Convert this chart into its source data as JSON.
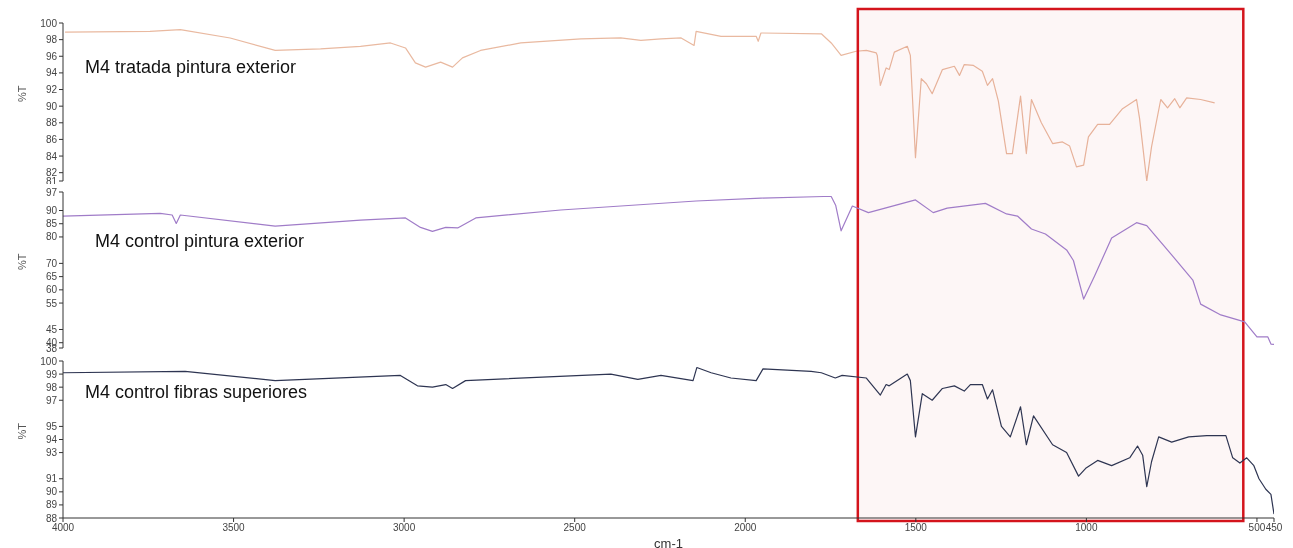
{
  "chart_data": [
    {
      "type": "line",
      "ylabel": "%T",
      "xlim": [
        4000,
        450
      ],
      "xticks": [
        4000,
        3500,
        3000,
        2500,
        2000,
        1500,
        1000,
        500,
        450
      ],
      "ylim": [
        81,
        100
      ],
      "yticks": [
        100,
        98,
        96,
        94,
        92,
        90,
        88,
        86,
        84,
        82,
        81
      ],
      "tick_labels": "y",
      "marker": "none",
      "line_style": "solid",
      "bands": [
        {
          "axis": "x",
          "from": 1670,
          "to": 540,
          "color": "#d4141c"
        }
      ],
      "series": [
        {
          "name": "M4 tratada pintura exterior",
          "color": "#e9b9a0",
          "x": [
            3994,
            3745,
            3656,
            3510,
            3378,
            3245,
            3128,
            3040,
            2996,
            2967,
            2937,
            2893,
            2858,
            2829,
            2776,
            2658,
            2482,
            2365,
            2306,
            2247,
            2188,
            2150,
            2144,
            2071,
            1968,
            1962,
            1954,
            1777,
            1748,
            1719,
            1675,
            1645,
            1616,
            1613,
            1604,
            1587,
            1578,
            1563,
            1525,
            1516,
            1501,
            1484,
            1469,
            1452,
            1422,
            1387,
            1372,
            1358,
            1331,
            1305,
            1290,
            1275,
            1258,
            1234,
            1217,
            1193,
            1176,
            1161,
            1132,
            1099,
            1070,
            1049,
            1029,
            1008,
            994,
            967,
            932,
            894,
            853,
            844,
            823,
            809,
            782,
            762,
            741,
            726,
            706,
            665,
            624
          ],
          "values": [
            98.9,
            99.0,
            99.2,
            98.2,
            96.7,
            96.9,
            97.2,
            97.6,
            97.0,
            95.2,
            94.7,
            95.3,
            94.7,
            95.8,
            96.7,
            97.6,
            98.1,
            98.2,
            97.9,
            98.1,
            98.2,
            97.3,
            99.0,
            98.4,
            98.4,
            97.8,
            98.8,
            98.7,
            97.6,
            96.1,
            96.6,
            96.7,
            96.4,
            96.1,
            92.5,
            94.6,
            94.4,
            96.5,
            97.2,
            96.1,
            83.8,
            93.3,
            92.7,
            91.5,
            94.4,
            94.8,
            93.7,
            95.0,
            94.9,
            94.2,
            92.5,
            93.3,
            90.6,
            84.3,
            84.3,
            91.2,
            84.3,
            90.8,
            88.0,
            85.5,
            85.7,
            85.2,
            82.7,
            82.9,
            86.3,
            87.8,
            87.8,
            89.7,
            90.8,
            88.5,
            81.0,
            85.1,
            90.8,
            89.8,
            90.9,
            89.8,
            91.0,
            90.8,
            90.4
          ]
        }
      ]
    },
    {
      "type": "line",
      "ylabel": "%T",
      "xlim": [
        4000,
        450
      ],
      "xticks": [
        4000,
        3500,
        3000,
        2500,
        2000,
        1500,
        1000,
        500,
        450
      ],
      "ylim": [
        38,
        97
      ],
      "yticks": [
        97,
        90,
        85,
        80,
        70,
        65,
        60,
        55,
        45,
        40,
        38
      ],
      "tick_labels": "y",
      "marker": "none",
      "line_style": "solid",
      "series": [
        {
          "name": "M4 control pintura exterior",
          "color": "#a07cc8",
          "x": [
            4000,
            3715,
            3680,
            3668,
            3656,
            3378,
            3128,
            2996,
            2952,
            2917,
            2878,
            2843,
            2790,
            2541,
            2144,
            1954,
            1770,
            1748,
            1735,
            1719,
            1686,
            1639,
            1501,
            1449,
            1408,
            1296,
            1234,
            1202,
            1161,
            1120,
            1058,
            1038,
            1008,
            976,
            926,
            853,
            823,
            750,
            688,
            665,
            606,
            536,
            500,
            468,
            459,
            450
          ],
          "values": [
            87.9,
            88.9,
            88.3,
            85.1,
            88.3,
            84.1,
            86.4,
            87.2,
            83.6,
            82.1,
            83.6,
            83.4,
            87.2,
            90.2,
            93.6,
            94.7,
            95.3,
            95.3,
            92.0,
            82.3,
            91.7,
            89.2,
            94.0,
            89.2,
            90.9,
            92.7,
            88.7,
            87.9,
            83.0,
            81.1,
            75.1,
            71.1,
            56.5,
            65.2,
            79.6,
            85.4,
            84.3,
            73.2,
            63.7,
            54.6,
            50.5,
            47.9,
            42.2,
            42.2,
            39.5,
            39.4
          ]
        }
      ]
    },
    {
      "type": "line",
      "ylabel": "%T",
      "xlabel": "cm-1",
      "xlim": [
        4000,
        450
      ],
      "xticks": [
        4000,
        3500,
        3000,
        2500,
        2000,
        1500,
        1000,
        500,
        450
      ],
      "ylim": [
        88,
        100
      ],
      "yticks": [
        100,
        99,
        98,
        97,
        95,
        94,
        93,
        91,
        90,
        89,
        88
      ],
      "marker": "none",
      "line_style": "solid",
      "series": [
        {
          "name": "M4 control fibras superiores",
          "color": "#2e3552",
          "x": [
            4000,
            3642,
            3378,
            3011,
            2961,
            2917,
            2878,
            2858,
            2820,
            2394,
            2315,
            2247,
            2153,
            2142,
            2100,
            2042,
            1968,
            1948,
            1807,
            1777,
            1736,
            1716,
            1645,
            1604,
            1587,
            1578,
            1525,
            1516,
            1501,
            1481,
            1452,
            1422,
            1387,
            1358,
            1340,
            1305,
            1290,
            1275,
            1249,
            1223,
            1193,
            1176,
            1155,
            1099,
            1058,
            1023,
            1002,
            967,
            926,
            873,
            850,
            835,
            823,
            809,
            788,
            750,
            700,
            647,
            591,
            571,
            550,
            530,
            509,
            494,
            474,
            459,
            450
          ],
          "values": [
            99.1,
            99.2,
            98.5,
            98.9,
            98.1,
            98.0,
            98.2,
            97.9,
            98.5,
            99.0,
            98.6,
            98.9,
            98.5,
            99.5,
            99.1,
            98.7,
            98.5,
            99.4,
            99.2,
            99.1,
            98.7,
            98.9,
            98.7,
            97.4,
            98.2,
            98.1,
            99.0,
            98.5,
            94.2,
            97.5,
            97.0,
            97.9,
            98.1,
            97.7,
            98.2,
            98.2,
            97.1,
            97.8,
            95.0,
            94.2,
            96.5,
            93.6,
            95.8,
            93.6,
            93.0,
            91.2,
            91.8,
            92.4,
            92.0,
            92.6,
            93.5,
            92.8,
            90.4,
            92.3,
            94.2,
            93.8,
            94.2,
            94.3,
            94.3,
            92.6,
            92.2,
            92.6,
            92.0,
            91.0,
            90.2,
            89.8,
            88.3
          ]
        }
      ]
    }
  ]
}
